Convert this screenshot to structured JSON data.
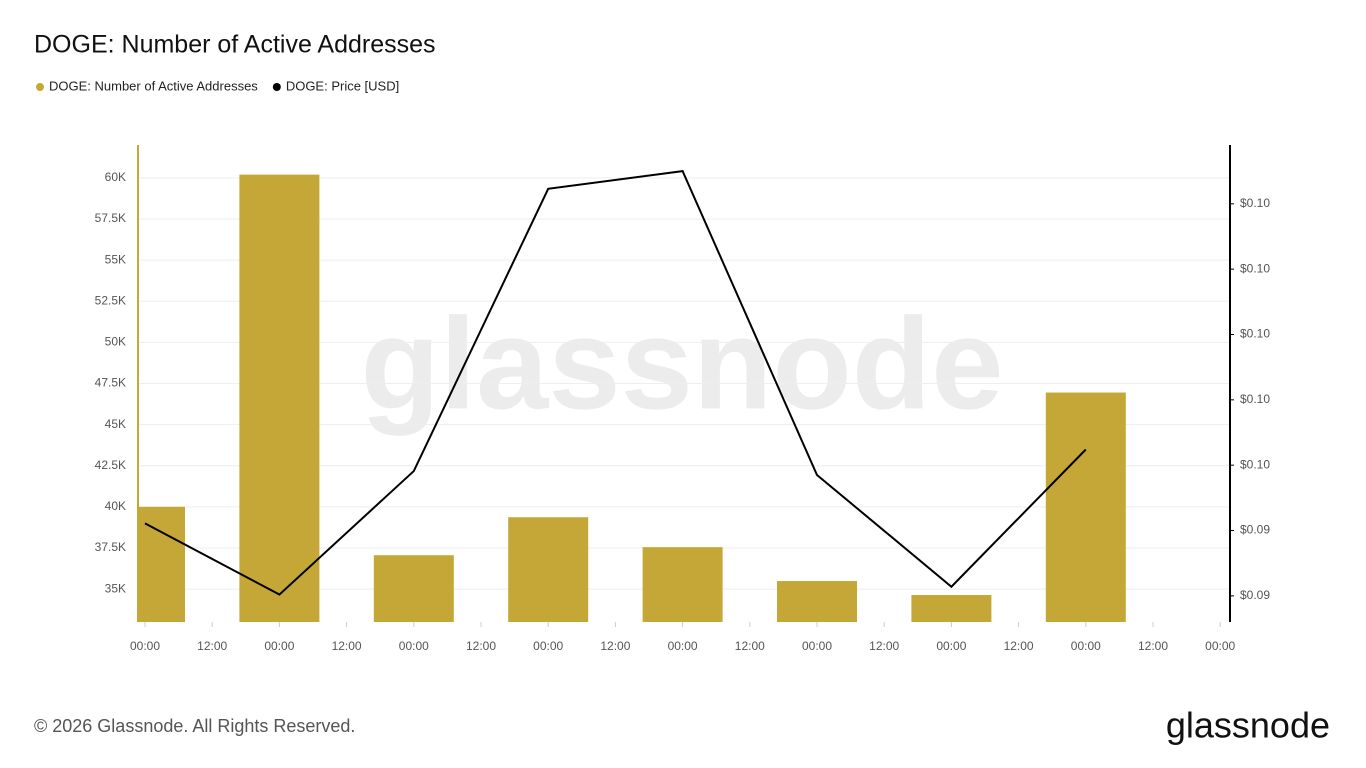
{
  "chart_data": {
    "type": "bar-line",
    "title": "DOGE: Number of Active Addresses",
    "x": [
      0,
      24,
      48,
      72,
      96,
      120,
      144,
      168
    ],
    "xlim": [
      -1.25,
      193.75
    ],
    "xticks": [
      {
        "value": 0,
        "label": "00:00"
      },
      {
        "value": 12,
        "label": "12:00"
      },
      {
        "value": 24,
        "label": "00:00"
      },
      {
        "value": 36,
        "label": "12:00"
      },
      {
        "value": 48,
        "label": "00:00"
      },
      {
        "value": 60,
        "label": "12:00"
      },
      {
        "value": 72,
        "label": "00:00"
      },
      {
        "value": 84,
        "label": "12:00"
      },
      {
        "value": 96,
        "label": "00:00"
      },
      {
        "value": 108,
        "label": "12:00"
      },
      {
        "value": 120,
        "label": "00:00"
      },
      {
        "value": 132,
        "label": "12:00"
      },
      {
        "value": 144,
        "label": "00:00"
      },
      {
        "value": 156,
        "label": "12:00"
      },
      {
        "value": 168,
        "label": "00:00"
      },
      {
        "value": 180,
        "label": "12:00"
      },
      {
        "value": 192,
        "label": "00:00"
      }
    ],
    "ylim": [
      33000,
      62000
    ],
    "yticks": [
      {
        "value": 35000,
        "label": "35K"
      },
      {
        "value": 37500,
        "label": "37.5K"
      },
      {
        "value": 40000,
        "label": "40K"
      },
      {
        "value": 42500,
        "label": "42.5K"
      },
      {
        "value": 45000,
        "label": "45K"
      },
      {
        "value": 47500,
        "label": "47.5K"
      },
      {
        "value": 50000,
        "label": "50K"
      },
      {
        "value": 52500,
        "label": "52.5K"
      },
      {
        "value": 55000,
        "label": "55K"
      },
      {
        "value": 57500,
        "label": "57.5K"
      },
      {
        "value": 60000,
        "label": "60K"
      }
    ],
    "y2lim": [
      0.0926,
      0.0999
    ],
    "y2ticks": [
      {
        "value": 0.093,
        "label": "$0.09"
      },
      {
        "value": 0.094,
        "label": "$0.09"
      },
      {
        "value": 0.095,
        "label": "$0.10"
      },
      {
        "value": 0.096,
        "label": "$0.10"
      },
      {
        "value": 0.097,
        "label": "$0.10"
      },
      {
        "value": 0.098,
        "label": "$0.10"
      },
      {
        "value": 0.099,
        "label": "$0.10"
      }
    ],
    "grid": true,
    "series": [
      {
        "name": "DOGE: Number of Active Addresses",
        "type": "bar",
        "color": "#c4a736",
        "values": [
          40000,
          60200,
          37060,
          39370,
          37550,
          35490,
          34640,
          46950
        ]
      },
      {
        "name": "DOGE: Price [USD]",
        "type": "line",
        "axis": "y2",
        "color": "#000000",
        "values": [
          0.09411,
          0.09302,
          0.09491,
          0.09923,
          0.0995,
          0.09485,
          0.09314,
          0.09524
        ]
      }
    ],
    "watermark": "glassnode",
    "footer": "© 2026 Glassnode. All Rights Reserved.",
    "logo": "glassnode"
  }
}
